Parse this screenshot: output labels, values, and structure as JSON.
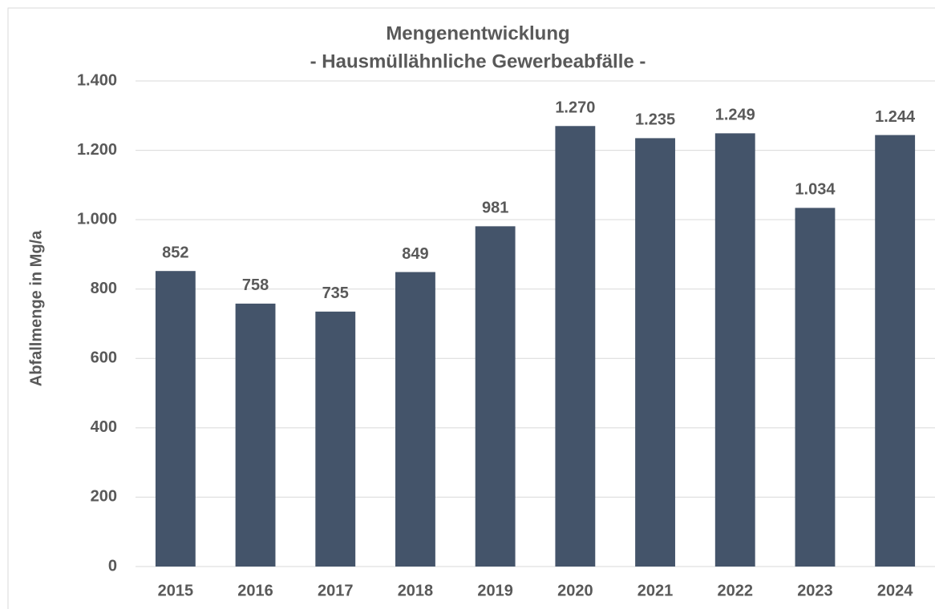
{
  "chart_data": {
    "type": "bar",
    "title": "Mengenentwicklung",
    "subtitle": "- Hausmüllähnliche Gewerbeabfälle -",
    "y_label": "Abfallmenge in Mg/a",
    "categories": [
      "2015",
      "2016",
      "2017",
      "2018",
      "2019",
      "2020",
      "2021",
      "2022",
      "2023",
      "2024"
    ],
    "values": [
      852,
      758,
      735,
      849,
      981,
      1270,
      1235,
      1249,
      1034,
      1244
    ],
    "value_labels": [
      "852",
      "758",
      "735",
      "849",
      "981",
      "1.270",
      "1.235",
      "1.249",
      "1.034",
      "1.244"
    ],
    "color": "#44546a",
    "ylim": [
      0,
      1400
    ],
    "yticks": [
      0,
      200,
      400,
      600,
      800,
      {
        "value": 1000,
        "label": "1.000"
      },
      {
        "value": 1200,
        "label": "1.200"
      },
      {
        "value": 1400,
        "label": "1.400"
      }
    ],
    "grid": true
  }
}
